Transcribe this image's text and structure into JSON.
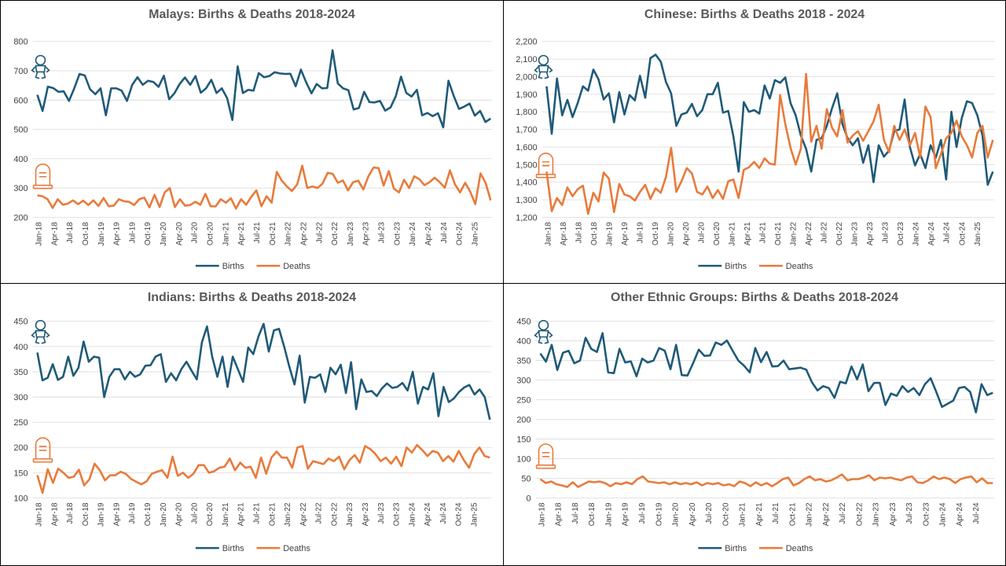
{
  "colors": {
    "births": "#1f5a78",
    "deaths": "#e87a3a",
    "axis_text": "#404040",
    "title": "#595959",
    "grid": "#d9d9d9"
  },
  "icons": {
    "births": "baby-icon",
    "deaths": "tombstone-icon"
  },
  "chart_data": [
    {
      "type": "line",
      "title": "Malays: Births & Deaths 2018-2024",
      "xlabel": "",
      "ylabel": "",
      "ylim": [
        200,
        800
      ],
      "yticks": [
        "200",
        "300",
        "400",
        "500",
        "600",
        "700",
        "800"
      ],
      "x_labels": [
        "Jan-18",
        "Apr-18",
        "Jul-18",
        "Oct-18",
        "Jan-19",
        "Apr-19",
        "Jul-19",
        "Oct-19",
        "Jan-20",
        "Apr-20",
        "Jul-20",
        "Oct-20",
        "Jan-21",
        "Apr-21",
        "Jul-21",
        "Oct-21",
        "Jan-22",
        "Apr-22",
        "Jul-22",
        "Oct-22",
        "Jan-23",
        "Apr-23",
        "Jul-23",
        "Oct-23",
        "Jan-24",
        "Apr-24",
        "Jul-24",
        "Oct-24",
        "Jan-25"
      ],
      "legend_position": "bottom",
      "series": [
        {
          "name": "Births",
          "values": [
            618,
            563,
            646,
            641,
            628,
            630,
            597,
            640,
            689,
            684,
            637,
            620,
            640,
            548,
            640,
            640,
            632,
            597,
            652,
            678,
            652,
            666,
            662,
            645,
            683,
            603,
            623,
            655,
            677,
            652,
            682,
            625,
            640,
            669,
            624,
            640,
            607,
            532,
            715,
            624,
            635,
            632,
            692,
            678,
            682,
            695,
            691,
            689,
            690,
            647,
            704,
            660,
            623,
            655,
            640,
            641,
            770,
            657,
            640,
            634,
            568,
            573,
            628,
            593,
            592,
            597,
            564,
            575,
            613,
            680,
            624,
            612,
            635,
            548,
            556,
            545,
            555,
            507,
            666,
            614,
            570,
            578,
            588,
            547,
            563,
            525,
            537
          ]
        },
        {
          "name": "Deaths",
          "values": [
            275,
            272,
            262,
            232,
            262,
            243,
            247,
            258,
            245,
            257,
            242,
            258,
            239,
            266,
            238,
            240,
            262,
            255,
            253,
            242,
            262,
            267,
            234,
            277,
            235,
            285,
            300,
            235,
            262,
            240,
            242,
            253,
            243,
            280,
            238,
            237,
            262,
            250,
            265,
            230,
            262,
            243,
            270,
            292,
            238,
            272,
            250,
            355,
            325,
            305,
            290,
            312,
            376,
            300,
            305,
            300,
            315,
            352,
            348,
            318,
            326,
            292,
            320,
            325,
            295,
            340,
            370,
            368,
            308,
            358,
            298,
            285,
            328,
            300,
            340,
            330,
            310,
            320,
            335,
            320,
            301,
            360,
            312,
            285,
            318,
            287,
            245,
            350,
            318,
            258
          ]
        }
      ]
    },
    {
      "type": "line",
      "title": "Chinese: Births & Deaths 2018 - 2024",
      "xlabel": "",
      "ylabel": "",
      "ylim": [
        1200,
        2200
      ],
      "yticks": [
        "1,200",
        "1,300",
        "1,400",
        "1,500",
        "1,600",
        "1,700",
        "1,800",
        "1,900",
        "2,000",
        "2,100",
        "2,200"
      ],
      "x_labels": [
        "Jan-18",
        "Apr-18",
        "Jul-18",
        "Oct-18",
        "Jan-19",
        "Apr-19",
        "Jul-19",
        "Oct-19",
        "Jan-20",
        "Apr-20",
        "Jul-20",
        "Oct-20",
        "Jan-21",
        "Apr-21",
        "Jul-21",
        "Oct-21",
        "Jan-22",
        "Apr-22",
        "Jul-22",
        "Oct-22",
        "Jan-23",
        "Apr-23",
        "Jul-23",
        "Oct-23",
        "Jan-24",
        "Apr-24",
        "Jul-24",
        "Oct-24",
        "Jan-25"
      ],
      "legend_position": "bottom",
      "series": [
        {
          "name": "Births",
          "values": [
            1945,
            1675,
            1990,
            1780,
            1868,
            1770,
            1850,
            1945,
            1920,
            2040,
            1985,
            1870,
            1905,
            1740,
            1912,
            1785,
            1895,
            1865,
            2005,
            1880,
            2105,
            2125,
            2085,
            1970,
            1905,
            1720,
            1785,
            1795,
            1845,
            1775,
            1810,
            1900,
            1900,
            1965,
            1795,
            1805,
            1660,
            1460,
            1855,
            1800,
            1810,
            1790,
            1950,
            1875,
            1980,
            1965,
            1995,
            1850,
            1780,
            1665,
            1590,
            1460,
            1640,
            1650,
            1720,
            1820,
            1905,
            1730,
            1650,
            1610,
            1650,
            1510,
            1610,
            1400,
            1610,
            1545,
            1580,
            1690,
            1700,
            1870,
            1600,
            1495,
            1560,
            1480,
            1610,
            1540,
            1640,
            1415,
            1800,
            1600,
            1765,
            1860,
            1850,
            1780,
            1665,
            1385,
            1460
          ]
        },
        {
          "name": "Deaths",
          "values": [
            1460,
            1235,
            1310,
            1270,
            1370,
            1320,
            1360,
            1380,
            1220,
            1340,
            1290,
            1455,
            1420,
            1230,
            1390,
            1330,
            1320,
            1295,
            1345,
            1385,
            1305,
            1365,
            1340,
            1430,
            1595,
            1345,
            1405,
            1480,
            1450,
            1345,
            1330,
            1375,
            1310,
            1355,
            1305,
            1405,
            1415,
            1310,
            1470,
            1485,
            1515,
            1480,
            1535,
            1505,
            1500,
            1895,
            1730,
            1595,
            1500,
            1590,
            2015,
            1630,
            1720,
            1590,
            1815,
            1710,
            1660,
            1810,
            1625,
            1665,
            1690,
            1635,
            1690,
            1745,
            1840,
            1640,
            1570,
            1720,
            1640,
            1700,
            1610,
            1680,
            1540,
            1830,
            1770,
            1480,
            1560,
            1650,
            1680,
            1750,
            1660,
            1610,
            1540,
            1680,
            1720,
            1540,
            1640
          ]
        }
      ]
    },
    {
      "type": "line",
      "title": "Indians: Births & Deaths 2018-2024",
      "xlabel": "",
      "ylabel": "",
      "ylim": [
        100,
        450
      ],
      "yticks": [
        "100",
        "150",
        "200",
        "250",
        "300",
        "350",
        "400",
        "450"
      ],
      "x_labels": [
        "Jan-18",
        "Apr-18",
        "Jul-18",
        "Oct-18",
        "Jan-19",
        "Apr-19",
        "Jul-19",
        "Oct-19",
        "Jan-20",
        "Apr-20",
        "Jul-20",
        "Oct-20",
        "Jan-21",
        "Apr-21",
        "Jul-21",
        "Oct-21",
        "Jan-22",
        "Apr-22",
        "Jul-22",
        "Oct-22",
        "Jan-23",
        "Apr-23",
        "Jul-23",
        "Oct-23",
        "Jan-24",
        "Apr-24",
        "Jul-24",
        "Oct-24",
        "Jan-25"
      ],
      "legend_position": "bottom",
      "series": [
        {
          "name": "Births",
          "values": [
            388,
            333,
            338,
            365,
            334,
            340,
            380,
            342,
            358,
            410,
            370,
            380,
            378,
            300,
            340,
            355,
            355,
            335,
            350,
            340,
            345,
            362,
            363,
            380,
            385,
            330,
            347,
            333,
            355,
            370,
            352,
            335,
            408,
            440,
            380,
            340,
            380,
            320,
            380,
            355,
            330,
            398,
            385,
            420,
            445,
            390,
            432,
            435,
            400,
            360,
            325,
            382,
            289,
            340,
            338,
            345,
            310,
            358,
            345,
            364,
            308,
            369,
            276,
            335,
            310,
            312,
            302,
            317,
            327,
            318,
            320,
            328,
            313,
            350,
            287,
            320,
            315,
            347,
            262,
            320,
            290,
            297,
            310,
            319,
            324,
            305,
            315,
            300,
            255
          ]
        },
        {
          "name": "Deaths",
          "values": [
            145,
            110,
            157,
            130,
            158,
            150,
            140,
            142,
            156,
            125,
            137,
            168,
            155,
            135,
            145,
            145,
            152,
            148,
            138,
            132,
            127,
            133,
            148,
            152,
            155,
            140,
            182,
            144,
            150,
            140,
            148,
            165,
            165,
            150,
            153,
            160,
            162,
            178,
            155,
            170,
            160,
            162,
            140,
            180,
            148,
            180,
            192,
            180,
            180,
            160,
            200,
            203,
            158,
            173,
            170,
            167,
            178,
            173,
            182,
            157,
            175,
            185,
            170,
            203,
            197,
            187,
            173,
            180,
            168,
            182,
            163,
            200,
            190,
            205,
            195,
            183,
            193,
            190,
            173,
            183,
            172,
            193,
            175,
            160,
            187,
            200,
            183,
            180
          ]
        }
      ]
    },
    {
      "type": "line",
      "title": "Other Ethnic Groups: Births & Deaths 2018-2024",
      "xlabel": "",
      "ylabel": "",
      "ylim": [
        0,
        450
      ],
      "yticks": [
        "0",
        "50",
        "100",
        "150",
        "200",
        "250",
        "300",
        "350",
        "400",
        "450"
      ],
      "x_labels": [
        "Jan-18",
        "Apr-18",
        "Jul-18",
        "Oct-18",
        "Jan-19",
        "Apr-19",
        "Jul-19",
        "Oct-19",
        "Jan-20",
        "Apr-20",
        "Jul-20",
        "Oct-20",
        "Jan-21",
        "Apr-21",
        "Jul-21",
        "Oct-21",
        "Jan-22",
        "Apr-22",
        "Jul-22",
        "Oct-22",
        "Jan-23",
        "Apr-23",
        "Jul-23",
        "Oct-23",
        "Jan-24",
        "Apr-24",
        "Jul-24"
      ],
      "legend_position": "bottom",
      "series": [
        {
          "name": "Births",
          "values": [
            368,
            347,
            390,
            326,
            370,
            375,
            343,
            350,
            408,
            380,
            372,
            420,
            320,
            318,
            380,
            345,
            348,
            310,
            355,
            345,
            350,
            382,
            375,
            328,
            390,
            313,
            312,
            343,
            378,
            362,
            363,
            396,
            390,
            401,
            375,
            350,
            337,
            320,
            382,
            346,
            372,
            335,
            336,
            350,
            328,
            330,
            332,
            327,
            295,
            274,
            285,
            280,
            255,
            296,
            292,
            335,
            302,
            340,
            272,
            293,
            293,
            237,
            266,
            260,
            285,
            270,
            280,
            262,
            290,
            305,
            270,
            232,
            240,
            248,
            280,
            283,
            270,
            218,
            290,
            262,
            268
          ]
        },
        {
          "name": "Deaths",
          "values": [
            48,
            38,
            42,
            35,
            32,
            28,
            40,
            28,
            35,
            42,
            40,
            42,
            38,
            30,
            38,
            35,
            40,
            35,
            48,
            55,
            42,
            40,
            38,
            40,
            35,
            40,
            35,
            38,
            35,
            40,
            32,
            38,
            35,
            38,
            32,
            35,
            30,
            42,
            38,
            30,
            40,
            32,
            38,
            30,
            38,
            48,
            52,
            32,
            38,
            48,
            55,
            45,
            48,
            42,
            45,
            52,
            60,
            45,
            48,
            48,
            52,
            58,
            45,
            52,
            50,
            52,
            48,
            45,
            52,
            55,
            40,
            38,
            45,
            55,
            48,
            52,
            48,
            38,
            48,
            52,
            55,
            40,
            50,
            38,
            38
          ]
        }
      ]
    }
  ]
}
